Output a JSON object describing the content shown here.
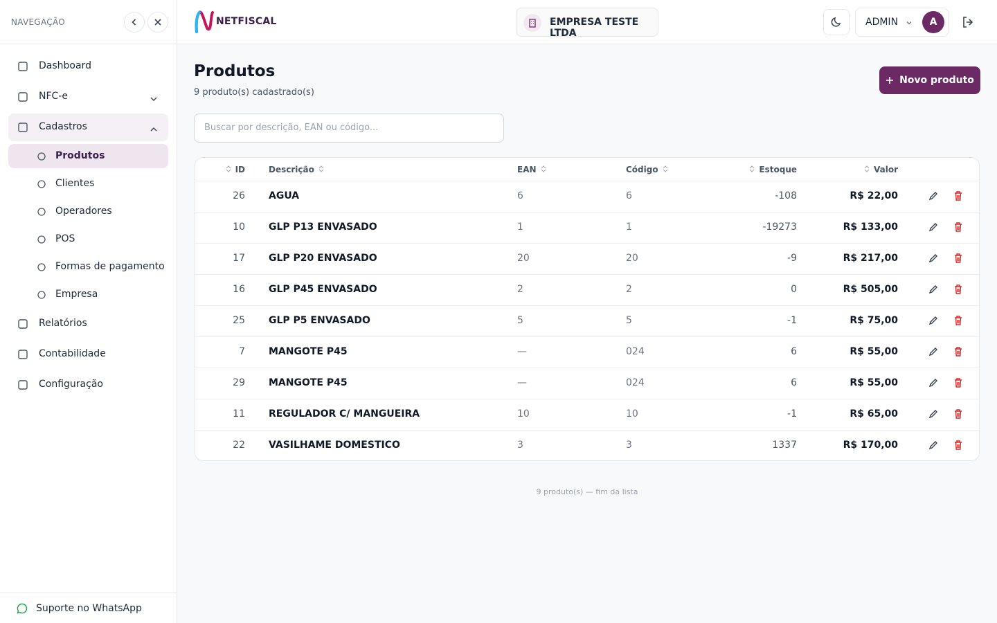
{
  "sidebar": {
    "heading": "NAVEGAÇÃO",
    "items": [
      {
        "label": "Dashboard"
      },
      {
        "label": "NFC-e"
      },
      {
        "label": "Cadastros",
        "children": [
          {
            "label": "Produtos"
          },
          {
            "label": "Clientes"
          },
          {
            "label": "Operadores"
          },
          {
            "label": "POS"
          },
          {
            "label": "Formas de pagamento"
          },
          {
            "label": "Empresa"
          }
        ]
      },
      {
        "label": "Relatórios"
      },
      {
        "label": "Contabilidade"
      },
      {
        "label": "Configuração"
      }
    ],
    "support": "Suporte no WhatsApp"
  },
  "header": {
    "logo": "NETFISCAL",
    "company": "EMPRESA TESTE LTDA",
    "user": "ADMIN",
    "avatar": "A"
  },
  "page": {
    "title": "Produtos",
    "subtitle": "9 produto(s) cadastrado(s)",
    "new_button": "Novo produto",
    "search_placeholder": "Buscar por descrição, EAN ou código...",
    "columns": [
      "ID",
      "Descrição",
      "EAN",
      "Código",
      "Estoque",
      "Valor"
    ],
    "rows": [
      [
        "26",
        "AGUA",
        "6",
        "6",
        "-108",
        "R$ 22,00"
      ],
      [
        "10",
        "GLP P13 ENVASADO",
        "1",
        "1",
        "-19273",
        "R$ 133,00"
      ],
      [
        "17",
        "GLP P20 ENVASADO",
        "20",
        "20",
        "-9",
        "R$ 217,00"
      ],
      [
        "16",
        "GLP P45 ENVASADO",
        "2",
        "2",
        "0",
        "R$ 505,00"
      ],
      [
        "25",
        "GLP P5 ENVASADO",
        "5",
        "5",
        "-1",
        "R$ 75,00"
      ],
      [
        "7",
        "MANGOTE P45",
        "—",
        "024",
        "6",
        "R$ 55,00"
      ],
      [
        "29",
        "MANGOTE P45",
        "—",
        "024",
        "6",
        "R$ 55,00"
      ],
      [
        "11",
        "REGULADOR C/ MANGUEIRA",
        "10",
        "10",
        "-1",
        "R$ 65,00"
      ],
      [
        "22",
        "VASILHAME DOMESTICO",
        "3",
        "3",
        "1337",
        "R$ 170,00"
      ]
    ],
    "footer": "9 produto(s) — fim da lista"
  }
}
